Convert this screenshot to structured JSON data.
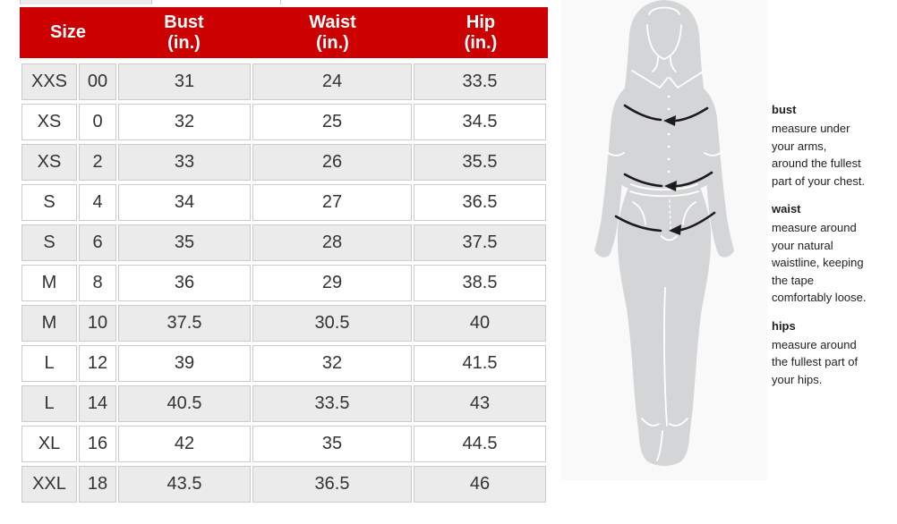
{
  "table": {
    "header": [
      "Size",
      "Bust\n(in.)",
      "Waist\n(in.)",
      "Hip\n(in.)"
    ],
    "rows": [
      [
        "XXS",
        "00",
        "31",
        "24",
        "33.5"
      ],
      [
        "XS",
        "0",
        "32",
        "25",
        "34.5"
      ],
      [
        "XS",
        "2",
        "33",
        "26",
        "35.5"
      ],
      [
        "S",
        "4",
        "34",
        "27",
        "36.5"
      ],
      [
        "S",
        "6",
        "35",
        "28",
        "37.5"
      ],
      [
        "M",
        "8",
        "36",
        "29",
        "38.5"
      ],
      [
        "M",
        "10",
        "37.5",
        "30.5",
        "40"
      ],
      [
        "L",
        "12",
        "39",
        "32",
        "41.5"
      ],
      [
        "L",
        "14",
        "40.5",
        "33.5",
        "43"
      ],
      [
        "XL",
        "16",
        "42",
        "35",
        "44.5"
      ],
      [
        "XXL",
        "18",
        "43.5",
        "36.5",
        "46"
      ]
    ]
  },
  "guide": {
    "sections": [
      {
        "label": "bust",
        "text": "measure under\nyour arms,\naround the fullest\npart of your chest."
      },
      {
        "label": "waist",
        "text": "measure around\nyour natural\nwaistline, keeping\nthe tape\ncomfortably loose."
      },
      {
        "label": "hips",
        "text": "measure around\nthe fullest part of\nyour hips."
      }
    ],
    "figure_alt": "woman-silhouette-with-bust-waist-hip-measurement-arrows"
  },
  "colors": {
    "header_bg": "#cc0000",
    "header_text": "#ffffff",
    "row_alt_bg": "#ebebeb",
    "row_bg": "#ffffff",
    "cell_border": "#cbcbcb",
    "cell_text": "#333333",
    "silhouette": "#d3d5d7",
    "figure_bg": "#f9f9f9",
    "arrow": "#1b1b1b"
  }
}
